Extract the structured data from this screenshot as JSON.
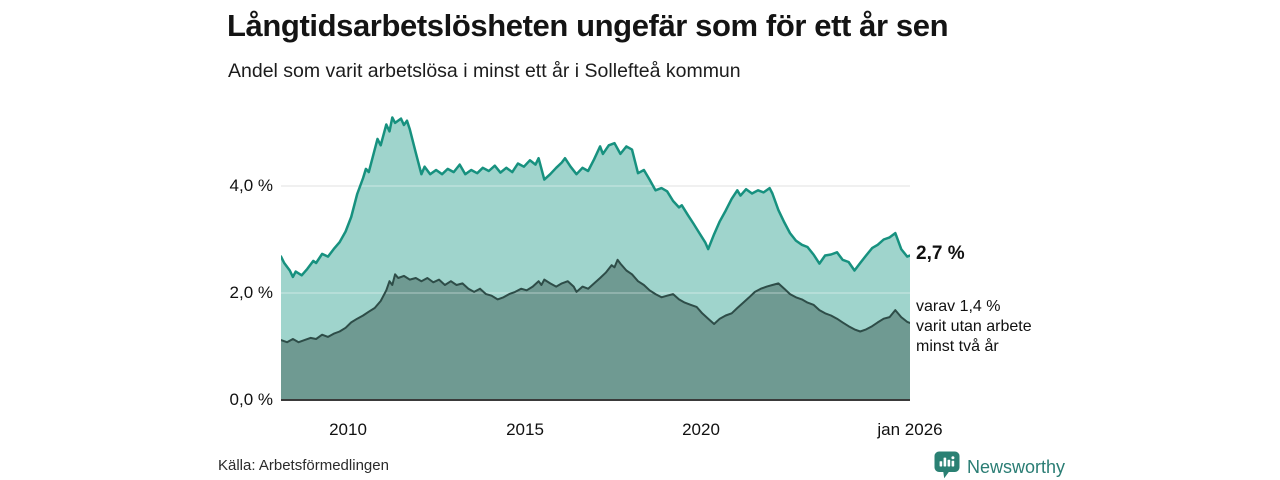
{
  "header": {
    "title": "Långtidsarbetslösheten ungefär som för ett år sen",
    "subtitle": "Andel som varit arbetslösa i minst ett år i Sollefteå kommun"
  },
  "annotations": {
    "total": "2,7 %",
    "sub_lines": [
      "varav 1,4 %",
      "varit utan arbete",
      "minst två år"
    ]
  },
  "footer": {
    "source": "Källa: Arbetsförmedlingen",
    "brand": "Newsworthy"
  },
  "colors": {
    "line_total": "#17917f",
    "fill_total": "#9fd4cc",
    "line_two_years": "#2e4d48",
    "fill_two_years": "#6f9a92",
    "gridline": "#dddddd",
    "axis": "#3a3a3a",
    "brand_teal": "#2a7d74"
  },
  "chart_data": {
    "type": "area",
    "title": "Långtidsarbetslösheten ungefär som för ett år sen",
    "subtitle": "Andel som varit arbetslösa i minst ett år i Sollefteå kommun",
    "x_domain": [
      2008.08,
      2026.0
    ],
    "ylim": [
      0,
      5.6
    ],
    "grid": true,
    "y_ticks": [
      {
        "v": 0,
        "label": "0,0 %"
      },
      {
        "v": 2,
        "label": "2,0 %"
      },
      {
        "v": 4,
        "label": "4,0 %"
      }
    ],
    "x_ticks": [
      {
        "v": 2010,
        "label": "2010"
      },
      {
        "v": 2015,
        "label": "2015"
      },
      {
        "v": 2020,
        "label": "2020"
      },
      {
        "v": 2026,
        "label": "jan 2026"
      }
    ],
    "series": [
      {
        "name": "Andel arbetslösa minst ett år",
        "end_value": "2,7 %",
        "line": "#17917f",
        "fill": "#9fd4cc",
        "line_width": 2.5,
        "points": [
          [
            2008.08,
            2.68
          ],
          [
            2008.17,
            2.56
          ],
          [
            2008.33,
            2.42
          ],
          [
            2008.42,
            2.3
          ],
          [
            2008.5,
            2.4
          ],
          [
            2008.67,
            2.33
          ],
          [
            2008.83,
            2.45
          ],
          [
            2009.0,
            2.6
          ],
          [
            2009.08,
            2.56
          ],
          [
            2009.25,
            2.73
          ],
          [
            2009.42,
            2.68
          ],
          [
            2009.58,
            2.82
          ],
          [
            2009.75,
            2.95
          ],
          [
            2009.92,
            3.15
          ],
          [
            2010.08,
            3.42
          ],
          [
            2010.25,
            3.85
          ],
          [
            2010.42,
            4.15
          ],
          [
            2010.5,
            4.32
          ],
          [
            2010.58,
            4.26
          ],
          [
            2010.75,
            4.68
          ],
          [
            2010.83,
            4.88
          ],
          [
            2010.92,
            4.76
          ],
          [
            2011.08,
            5.15
          ],
          [
            2011.17,
            5.02
          ],
          [
            2011.25,
            5.28
          ],
          [
            2011.33,
            5.18
          ],
          [
            2011.5,
            5.26
          ],
          [
            2011.58,
            5.14
          ],
          [
            2011.67,
            5.22
          ],
          [
            2011.75,
            5.06
          ],
          [
            2011.92,
            4.62
          ],
          [
            2012.08,
            4.22
          ],
          [
            2012.17,
            4.36
          ],
          [
            2012.33,
            4.22
          ],
          [
            2012.5,
            4.3
          ],
          [
            2012.67,
            4.22
          ],
          [
            2012.83,
            4.32
          ],
          [
            2013.0,
            4.26
          ],
          [
            2013.17,
            4.4
          ],
          [
            2013.33,
            4.22
          ],
          [
            2013.5,
            4.3
          ],
          [
            2013.67,
            4.24
          ],
          [
            2013.83,
            4.34
          ],
          [
            2014.0,
            4.28
          ],
          [
            2014.17,
            4.38
          ],
          [
            2014.33,
            4.25
          ],
          [
            2014.5,
            4.34
          ],
          [
            2014.67,
            4.26
          ],
          [
            2014.83,
            4.42
          ],
          [
            2015.0,
            4.36
          ],
          [
            2015.17,
            4.48
          ],
          [
            2015.33,
            4.4
          ],
          [
            2015.42,
            4.52
          ],
          [
            2015.58,
            4.12
          ],
          [
            2015.75,
            4.22
          ],
          [
            2015.92,
            4.34
          ],
          [
            2016.08,
            4.44
          ],
          [
            2016.17,
            4.52
          ],
          [
            2016.33,
            4.36
          ],
          [
            2016.5,
            4.22
          ],
          [
            2016.67,
            4.34
          ],
          [
            2016.83,
            4.28
          ],
          [
            2017.0,
            4.5
          ],
          [
            2017.17,
            4.74
          ],
          [
            2017.25,
            4.6
          ],
          [
            2017.42,
            4.76
          ],
          [
            2017.58,
            4.8
          ],
          [
            2017.75,
            4.6
          ],
          [
            2017.92,
            4.74
          ],
          [
            2018.08,
            4.68
          ],
          [
            2018.25,
            4.24
          ],
          [
            2018.42,
            4.3
          ],
          [
            2018.58,
            4.12
          ],
          [
            2018.75,
            3.92
          ],
          [
            2018.92,
            3.96
          ],
          [
            2019.08,
            3.9
          ],
          [
            2019.25,
            3.72
          ],
          [
            2019.42,
            3.6
          ],
          [
            2019.5,
            3.64
          ],
          [
            2019.67,
            3.46
          ],
          [
            2019.83,
            3.3
          ],
          [
            2020.0,
            3.12
          ],
          [
            2020.17,
            2.94
          ],
          [
            2020.25,
            2.82
          ],
          [
            2020.42,
            3.1
          ],
          [
            2020.58,
            3.34
          ],
          [
            2020.75,
            3.54
          ],
          [
            2020.92,
            3.76
          ],
          [
            2021.08,
            3.92
          ],
          [
            2021.17,
            3.82
          ],
          [
            2021.33,
            3.94
          ],
          [
            2021.5,
            3.86
          ],
          [
            2021.67,
            3.92
          ],
          [
            2021.83,
            3.88
          ],
          [
            2022.0,
            3.96
          ],
          [
            2022.08,
            3.86
          ],
          [
            2022.25,
            3.55
          ],
          [
            2022.42,
            3.32
          ],
          [
            2022.58,
            3.12
          ],
          [
            2022.75,
            2.98
          ],
          [
            2022.92,
            2.9
          ],
          [
            2023.08,
            2.86
          ],
          [
            2023.25,
            2.72
          ],
          [
            2023.42,
            2.55
          ],
          [
            2023.58,
            2.7
          ],
          [
            2023.75,
            2.72
          ],
          [
            2023.92,
            2.76
          ],
          [
            2024.08,
            2.62
          ],
          [
            2024.25,
            2.58
          ],
          [
            2024.42,
            2.42
          ],
          [
            2024.58,
            2.56
          ],
          [
            2024.75,
            2.7
          ],
          [
            2024.92,
            2.84
          ],
          [
            2025.08,
            2.9
          ],
          [
            2025.25,
            3.0
          ],
          [
            2025.42,
            3.04
          ],
          [
            2025.58,
            3.12
          ],
          [
            2025.75,
            2.82
          ],
          [
            2025.92,
            2.68
          ],
          [
            2026.0,
            2.7
          ]
        ]
      },
      {
        "name": "Varav utan arbete minst två år",
        "end_value": "1,4 %",
        "line": "#2e4d48",
        "fill": "#6f9a92",
        "line_width": 2,
        "points": [
          [
            2008.08,
            1.12
          ],
          [
            2008.25,
            1.08
          ],
          [
            2008.42,
            1.14
          ],
          [
            2008.58,
            1.08
          ],
          [
            2008.75,
            1.12
          ],
          [
            2008.92,
            1.16
          ],
          [
            2009.08,
            1.14
          ],
          [
            2009.25,
            1.22
          ],
          [
            2009.42,
            1.18
          ],
          [
            2009.58,
            1.24
          ],
          [
            2009.75,
            1.28
          ],
          [
            2009.92,
            1.35
          ],
          [
            2010.08,
            1.45
          ],
          [
            2010.25,
            1.52
          ],
          [
            2010.42,
            1.58
          ],
          [
            2010.58,
            1.65
          ],
          [
            2010.75,
            1.72
          ],
          [
            2010.92,
            1.85
          ],
          [
            2011.08,
            2.05
          ],
          [
            2011.17,
            2.22
          ],
          [
            2011.25,
            2.15
          ],
          [
            2011.33,
            2.35
          ],
          [
            2011.42,
            2.28
          ],
          [
            2011.58,
            2.32
          ],
          [
            2011.75,
            2.25
          ],
          [
            2011.92,
            2.28
          ],
          [
            2012.08,
            2.22
          ],
          [
            2012.25,
            2.28
          ],
          [
            2012.42,
            2.2
          ],
          [
            2012.58,
            2.25
          ],
          [
            2012.75,
            2.15
          ],
          [
            2012.92,
            2.22
          ],
          [
            2013.08,
            2.15
          ],
          [
            2013.25,
            2.18
          ],
          [
            2013.42,
            2.08
          ],
          [
            2013.58,
            2.02
          ],
          [
            2013.75,
            2.08
          ],
          [
            2013.92,
            1.98
          ],
          [
            2014.08,
            1.95
          ],
          [
            2014.25,
            1.88
          ],
          [
            2014.42,
            1.92
          ],
          [
            2014.58,
            1.98
          ],
          [
            2014.75,
            2.02
          ],
          [
            2014.92,
            2.08
          ],
          [
            2015.08,
            2.05
          ],
          [
            2015.25,
            2.12
          ],
          [
            2015.42,
            2.22
          ],
          [
            2015.5,
            2.15
          ],
          [
            2015.58,
            2.25
          ],
          [
            2015.75,
            2.18
          ],
          [
            2015.92,
            2.12
          ],
          [
            2016.08,
            2.18
          ],
          [
            2016.25,
            2.22
          ],
          [
            2016.42,
            2.12
          ],
          [
            2016.5,
            2.02
          ],
          [
            2016.67,
            2.12
          ],
          [
            2016.83,
            2.08
          ],
          [
            2017.0,
            2.18
          ],
          [
            2017.17,
            2.28
          ],
          [
            2017.33,
            2.38
          ],
          [
            2017.5,
            2.52
          ],
          [
            2017.58,
            2.48
          ],
          [
            2017.67,
            2.62
          ],
          [
            2017.75,
            2.55
          ],
          [
            2017.92,
            2.42
          ],
          [
            2018.08,
            2.35
          ],
          [
            2018.25,
            2.22
          ],
          [
            2018.42,
            2.15
          ],
          [
            2018.58,
            2.05
          ],
          [
            2018.75,
            1.98
          ],
          [
            2018.92,
            1.92
          ],
          [
            2019.08,
            1.95
          ],
          [
            2019.25,
            1.98
          ],
          [
            2019.42,
            1.88
          ],
          [
            2019.58,
            1.82
          ],
          [
            2019.75,
            1.78
          ],
          [
            2019.92,
            1.74
          ],
          [
            2020.08,
            1.62
          ],
          [
            2020.25,
            1.52
          ],
          [
            2020.42,
            1.42
          ],
          [
            2020.58,
            1.52
          ],
          [
            2020.75,
            1.58
          ],
          [
            2020.92,
            1.62
          ],
          [
            2021.08,
            1.72
          ],
          [
            2021.25,
            1.82
          ],
          [
            2021.42,
            1.92
          ],
          [
            2021.58,
            2.02
          ],
          [
            2021.75,
            2.08
          ],
          [
            2021.92,
            2.12
          ],
          [
            2022.08,
            2.15
          ],
          [
            2022.25,
            2.18
          ],
          [
            2022.42,
            2.08
          ],
          [
            2022.58,
            1.98
          ],
          [
            2022.75,
            1.92
          ],
          [
            2022.92,
            1.88
          ],
          [
            2023.08,
            1.82
          ],
          [
            2023.25,
            1.78
          ],
          [
            2023.42,
            1.68
          ],
          [
            2023.58,
            1.62
          ],
          [
            2023.75,
            1.58
          ],
          [
            2023.92,
            1.52
          ],
          [
            2024.08,
            1.45
          ],
          [
            2024.25,
            1.38
          ],
          [
            2024.42,
            1.32
          ],
          [
            2024.58,
            1.28
          ],
          [
            2024.75,
            1.32
          ],
          [
            2024.92,
            1.38
          ],
          [
            2025.08,
            1.45
          ],
          [
            2025.25,
            1.52
          ],
          [
            2025.42,
            1.55
          ],
          [
            2025.58,
            1.68
          ],
          [
            2025.75,
            1.55
          ],
          [
            2025.92,
            1.46
          ],
          [
            2026.0,
            1.44
          ]
        ]
      }
    ]
  }
}
